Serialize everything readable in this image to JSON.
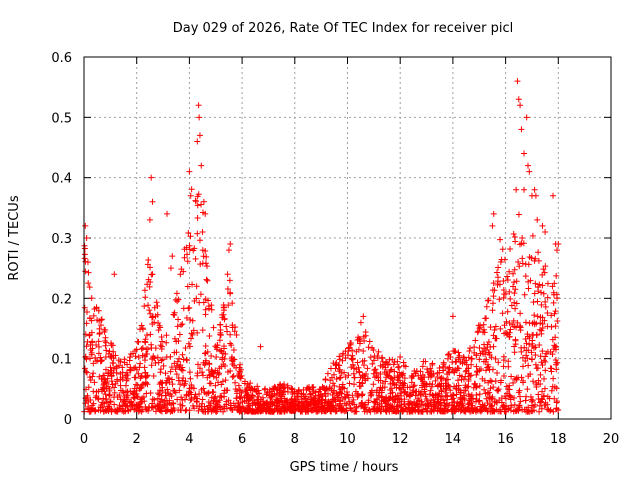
{
  "chart_data": {
    "type": "scatter",
    "title": "Day 029 of 2026, Rate Of TEC Index for receiver picl",
    "xlabel": "GPS time / hours",
    "ylabel": "ROTI / TECUs",
    "xlim": [
      0,
      20
    ],
    "ylim": [
      0,
      0.6
    ],
    "x_ticks": [
      "0",
      "2",
      "4",
      "6",
      "8",
      "10",
      "12",
      "14",
      "16",
      "18",
      "20"
    ],
    "y_ticks": [
      "0",
      "0.1",
      "0.2",
      "0.3",
      "0.4",
      "0.5",
      "0.6"
    ],
    "grid": true,
    "marker": "+",
    "marker_color": "#ff0000",
    "series": [
      {
        "name": "ROTI",
        "envelope": [
          [
            0.0,
            0.32
          ],
          [
            0.25,
            0.22
          ],
          [
            0.5,
            0.19
          ],
          [
            1.0,
            0.13
          ],
          [
            1.5,
            0.1
          ],
          [
            2.0,
            0.12
          ],
          [
            2.5,
            0.3
          ],
          [
            3.0,
            0.12
          ],
          [
            3.5,
            0.2
          ],
          [
            4.0,
            0.38
          ],
          [
            4.3,
            0.46
          ],
          [
            4.6,
            0.3
          ],
          [
            5.0,
            0.12
          ],
          [
            5.5,
            0.25
          ],
          [
            6.0,
            0.07
          ],
          [
            6.5,
            0.055
          ],
          [
            7.0,
            0.05
          ],
          [
            7.5,
            0.06
          ],
          [
            8.0,
            0.05
          ],
          [
            8.5,
            0.055
          ],
          [
            9.0,
            0.05
          ],
          [
            9.5,
            0.1
          ],
          [
            10.0,
            0.12
          ],
          [
            10.5,
            0.17
          ],
          [
            11.0,
            0.12
          ],
          [
            11.5,
            0.1
          ],
          [
            12.0,
            0.11
          ],
          [
            12.5,
            0.08
          ],
          [
            13.0,
            0.1
          ],
          [
            13.5,
            0.09
          ],
          [
            14.0,
            0.12
          ],
          [
            14.5,
            0.1
          ],
          [
            15.0,
            0.16
          ],
          [
            15.5,
            0.22
          ],
          [
            15.8,
            0.3
          ],
          [
            16.0,
            0.26
          ],
          [
            16.5,
            0.34
          ],
          [
            16.8,
            0.3
          ],
          [
            17.0,
            0.32
          ],
          [
            17.3,
            0.28
          ],
          [
            17.6,
            0.25
          ],
          [
            18.0,
            0.25
          ]
        ],
        "peaks": [
          [
            0.05,
            0.32
          ],
          [
            0.1,
            0.3
          ],
          [
            0.15,
            0.26
          ],
          [
            1.15,
            0.24
          ],
          [
            2.55,
            0.4
          ],
          [
            2.6,
            0.36
          ],
          [
            2.5,
            0.33
          ],
          [
            2.6,
            0.24
          ],
          [
            3.15,
            0.34
          ],
          [
            3.35,
            0.27
          ],
          [
            3.3,
            0.25
          ],
          [
            4.0,
            0.41
          ],
          [
            4.05,
            0.37
          ],
          [
            4.35,
            0.52
          ],
          [
            4.37,
            0.5
          ],
          [
            4.4,
            0.47
          ],
          [
            4.45,
            0.42
          ],
          [
            4.3,
            0.46
          ],
          [
            4.55,
            0.36
          ],
          [
            4.6,
            0.34
          ],
          [
            4.5,
            0.31
          ],
          [
            5.5,
            0.28
          ],
          [
            5.55,
            0.29
          ],
          [
            5.45,
            0.24
          ],
          [
            6.7,
            0.12
          ],
          [
            10.6,
            0.17
          ],
          [
            14.0,
            0.17
          ],
          [
            15.5,
            0.32
          ],
          [
            15.55,
            0.34
          ],
          [
            16.45,
            0.56
          ],
          [
            16.5,
            0.53
          ],
          [
            16.55,
            0.52
          ],
          [
            16.6,
            0.48
          ],
          [
            16.7,
            0.44
          ],
          [
            16.8,
            0.5
          ],
          [
            16.85,
            0.42
          ],
          [
            16.9,
            0.41
          ],
          [
            16.7,
            0.38
          ],
          [
            17.0,
            0.37
          ],
          [
            17.1,
            0.38
          ],
          [
            17.15,
            0.37
          ],
          [
            17.2,
            0.33
          ],
          [
            16.4,
            0.38
          ],
          [
            17.4,
            0.32
          ],
          [
            17.5,
            0.31
          ],
          [
            17.8,
            0.37
          ],
          [
            17.9,
            0.29
          ],
          [
            18.0,
            0.29
          ],
          [
            17.95,
            0.28
          ]
        ]
      }
    ]
  }
}
